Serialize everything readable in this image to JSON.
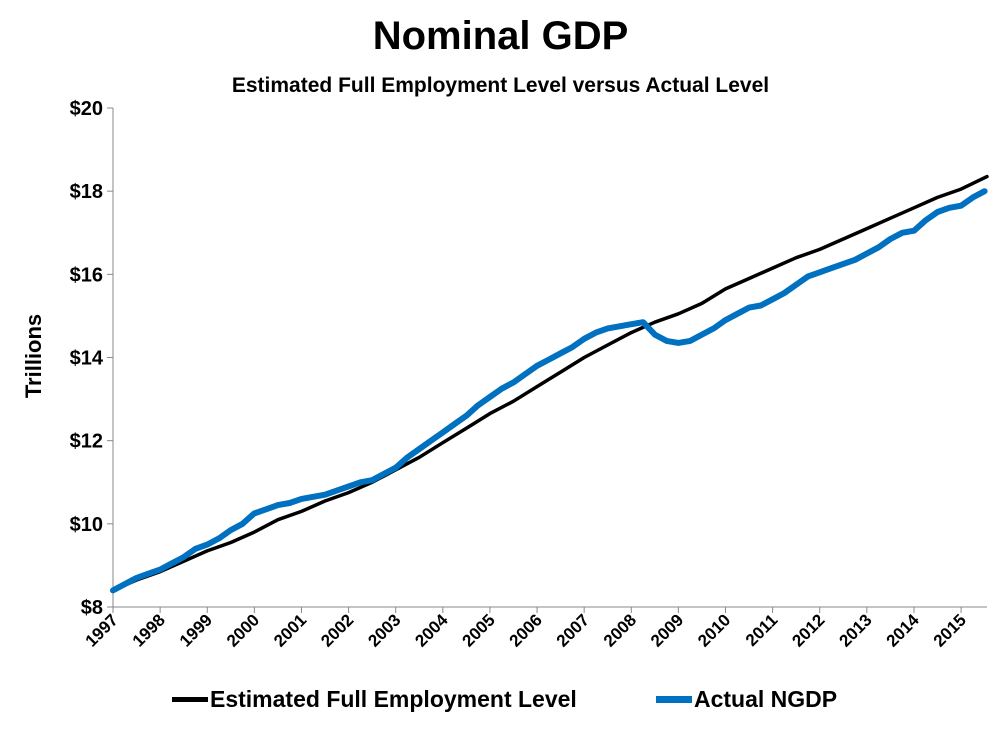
{
  "chart_data": {
    "type": "line",
    "title": "Nominal GDP",
    "subtitle": "Estimated Full Employment Level versus Actual Level",
    "ylabel": "Trillions",
    "xlabel": "",
    "ylim": [
      8,
      20
    ],
    "xlim": [
      1997.0,
      2015.55
    ],
    "yticks": [
      8,
      10,
      12,
      14,
      16,
      18,
      20
    ],
    "ytick_labels": [
      "$8",
      "$10",
      "$12",
      "$14",
      "$16",
      "$18",
      "$20"
    ],
    "xticks": [
      1997,
      1998,
      1999,
      2000,
      2001,
      2002,
      2003,
      2004,
      2005,
      2006,
      2007,
      2008,
      2009,
      2010,
      2011,
      2012,
      2013,
      2014,
      2015
    ],
    "xtick_labels": [
      "1997",
      "1998",
      "1999",
      "2000",
      "2001",
      "2002",
      "2003",
      "2004",
      "2005",
      "2006",
      "2007",
      "2008",
      "2009",
      "2010",
      "2011",
      "2012",
      "2013",
      "2014",
      "2015"
    ],
    "grid": false,
    "legend_position": "bottom",
    "series": [
      {
        "name": "Estimated Full Employment Level",
        "color": "#000000",
        "x": [
          1997.0,
          1997.5,
          1998.0,
          1998.5,
          1999.0,
          1999.5,
          2000.0,
          2000.5,
          2001.0,
          2001.5,
          2002.0,
          2002.5,
          2003.0,
          2003.5,
          2004.0,
          2004.5,
          2005.0,
          2005.5,
          2006.0,
          2006.5,
          2007.0,
          2007.5,
          2008.0,
          2008.5,
          2009.0,
          2009.5,
          2010.0,
          2010.5,
          2011.0,
          2011.5,
          2012.0,
          2012.5,
          2013.0,
          2013.5,
          2014.0,
          2014.5,
          2015.0,
          2015.55
        ],
        "values": [
          8.4,
          8.65,
          8.85,
          9.1,
          9.35,
          9.55,
          9.8,
          10.1,
          10.3,
          10.55,
          10.75,
          11.0,
          11.3,
          11.6,
          11.95,
          12.3,
          12.65,
          12.95,
          13.3,
          13.65,
          14.0,
          14.3,
          14.6,
          14.85,
          15.05,
          15.3,
          15.65,
          15.9,
          16.15,
          16.4,
          16.6,
          16.85,
          17.1,
          17.35,
          17.6,
          17.85,
          18.05,
          18.35
        ]
      },
      {
        "name": "Actual NGDP",
        "color": "#0070C0",
        "x": [
          1997.0,
          1997.25,
          1997.5,
          1997.75,
          1998.0,
          1998.25,
          1998.5,
          1998.75,
          1999.0,
          1999.25,
          1999.5,
          1999.75,
          2000.0,
          2000.25,
          2000.5,
          2000.75,
          2001.0,
          2001.25,
          2001.5,
          2001.75,
          2002.0,
          2002.25,
          2002.5,
          2002.75,
          2003.0,
          2003.25,
          2003.5,
          2003.75,
          2004.0,
          2004.25,
          2004.5,
          2004.75,
          2005.0,
          2005.25,
          2005.5,
          2005.75,
          2006.0,
          2006.25,
          2006.5,
          2006.75,
          2007.0,
          2007.25,
          2007.5,
          2007.75,
          2008.0,
          2008.25,
          2008.5,
          2008.75,
          2009.0,
          2009.25,
          2009.5,
          2009.75,
          2010.0,
          2010.25,
          2010.5,
          2010.75,
          2011.0,
          2011.25,
          2011.5,
          2011.75,
          2012.0,
          2012.25,
          2012.5,
          2012.75,
          2013.0,
          2013.25,
          2013.5,
          2013.75,
          2014.0,
          2014.25,
          2014.5,
          2014.75,
          2015.0,
          2015.25,
          2015.5
        ],
        "values": [
          8.4,
          8.55,
          8.7,
          8.8,
          8.9,
          9.05,
          9.2,
          9.4,
          9.5,
          9.65,
          9.85,
          10.0,
          10.25,
          10.35,
          10.45,
          10.5,
          10.6,
          10.65,
          10.7,
          10.8,
          10.9,
          11.0,
          11.05,
          11.2,
          11.35,
          11.6,
          11.8,
          12.0,
          12.2,
          12.4,
          12.6,
          12.85,
          13.05,
          13.25,
          13.4,
          13.6,
          13.8,
          13.95,
          14.1,
          14.25,
          14.45,
          14.6,
          14.7,
          14.75,
          14.8,
          14.85,
          14.55,
          14.4,
          14.35,
          14.4,
          14.55,
          14.7,
          14.9,
          15.05,
          15.2,
          15.25,
          15.4,
          15.55,
          15.75,
          15.95,
          16.05,
          16.15,
          16.25,
          16.35,
          16.5,
          16.65,
          16.85,
          17.0,
          17.05,
          17.3,
          17.5,
          17.6,
          17.65,
          17.85,
          18.0
        ]
      }
    ]
  }
}
